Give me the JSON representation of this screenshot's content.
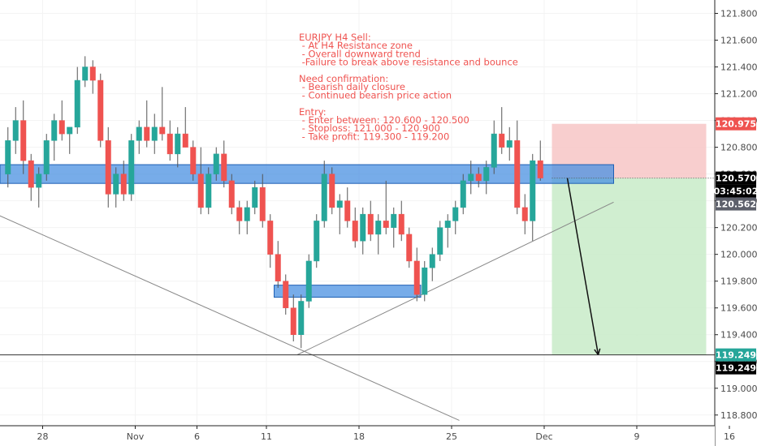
{
  "chart_data": {
    "type": "candlestick",
    "symbol": "EURJPY",
    "timeframe": "H4",
    "y_axis": {
      "ticks": [
        118.8,
        119.0,
        119.2,
        119.4,
        119.6,
        119.8,
        120.0,
        120.2,
        120.4,
        120.6,
        120.8,
        121.0,
        121.2,
        121.4,
        121.6,
        121.8
      ],
      "tick_labels": [
        "118.800",
        "119.000",
        "119.200",
        "119.400",
        "119.600",
        "119.800",
        "120.000",
        "120.200",
        "120.400",
        "120.600",
        "120.800",
        "121.000",
        "121.200",
        "121.400",
        "121.600",
        "121.800"
      ],
      "ylim": [
        118.72,
        121.9
      ]
    },
    "x_axis": {
      "tick_labels": [
        "28",
        "Nov",
        "6",
        "11",
        "18",
        "25",
        "Dec",
        "9",
        "16"
      ],
      "tick_bars": [
        5,
        17,
        25,
        34,
        46,
        58,
        70,
        82,
        94
      ]
    },
    "price_tags": {
      "stop_loss": {
        "label": "120.975",
        "value": 120.975,
        "color": "#ef5350"
      },
      "current": {
        "label": "120.570",
        "value": 120.57,
        "color": "#000000"
      },
      "countdown": {
        "label": "03:45:02",
        "color": "#000000"
      },
      "bid": {
        "label": "120.562",
        "value": 120.562,
        "color": "#5d606b"
      },
      "take_profit": {
        "label": "119.249",
        "value": 119.249,
        "color": "#26a69a"
      },
      "horizontal_line": {
        "label": "119.249",
        "value": 119.249,
        "color": "#000000"
      }
    },
    "annotation": [
      "EURJPY H4 Sell:",
      "    - At H4 Resistance zone",
      "    - Overall downward trend",
      "    -Failure to break above resistance and bounce",
      "",
      "Need confirmation:",
      "    - Bearish daily closure",
      "    - Continued bearish price action",
      "",
      "Entry:",
      "    - Enter between: 120.600 - 120.500",
      "    - Stoploss: 121.000 - 120.900",
      "    - Take profit: 119.300 - 119.200"
    ],
    "resistance_zone": {
      "x_from_bar": -1,
      "x_to_bar": 79,
      "y_low": 120.53,
      "y_high": 120.67,
      "color": "#4a90e2"
    },
    "support_zone": {
      "x_from_bar": 35,
      "x_to_bar": 54,
      "y_low": 119.68,
      "y_high": 119.77,
      "color": "#4a90e2"
    },
    "position": {
      "side": "short",
      "entry": 120.57,
      "stop": 120.975,
      "target": 119.249,
      "x_from_bar": 71,
      "x_to_bar": 91
    },
    "trend_lines": [
      {
        "from": [
          -1,
          120.3
        ],
        "to": [
          59,
          118.76
        ]
      },
      {
        "from": [
          38,
          119.25
        ],
        "to": [
          79,
          120.39
        ]
      }
    ],
    "arrow": {
      "from": [
        73,
        120.57
      ],
      "to": [
        77,
        119.25
      ]
    },
    "colors": {
      "up": "#26a69a",
      "down": "#ef5350",
      "wick": "#555555",
      "stop_zone": "#f7c5c5",
      "target_zone": "#c8ebc8"
    },
    "candles": [
      {
        "o": 120.6,
        "h": 120.95,
        "l": 120.5,
        "c": 120.85
      },
      {
        "o": 120.85,
        "h": 121.1,
        "l": 120.75,
        "c": 121.0
      },
      {
        "o": 121.0,
        "h": 121.15,
        "l": 120.6,
        "c": 120.7
      },
      {
        "o": 120.7,
        "h": 120.75,
        "l": 120.4,
        "c": 120.5
      },
      {
        "o": 120.5,
        "h": 120.65,
        "l": 120.35,
        "c": 120.6
      },
      {
        "o": 120.6,
        "h": 120.9,
        "l": 120.55,
        "c": 120.85
      },
      {
        "o": 120.85,
        "h": 121.05,
        "l": 120.7,
        "c": 121.0
      },
      {
        "o": 121.0,
        "h": 121.15,
        "l": 120.85,
        "c": 120.9
      },
      {
        "o": 120.9,
        "h": 120.95,
        "l": 120.75,
        "c": 120.95
      },
      {
        "o": 120.95,
        "h": 121.4,
        "l": 120.9,
        "c": 121.3
      },
      {
        "o": 121.3,
        "h": 121.48,
        "l": 121.25,
        "c": 121.4
      },
      {
        "o": 121.4,
        "h": 121.45,
        "l": 121.2,
        "c": 121.3
      },
      {
        "o": 121.3,
        "h": 121.35,
        "l": 120.8,
        "c": 120.85
      },
      {
        "o": 120.85,
        "h": 120.95,
        "l": 120.35,
        "c": 120.45
      },
      {
        "o": 120.45,
        "h": 120.65,
        "l": 120.35,
        "c": 120.6
      },
      {
        "o": 120.6,
        "h": 120.7,
        "l": 120.4,
        "c": 120.45
      },
      {
        "o": 120.45,
        "h": 120.9,
        "l": 120.4,
        "c": 120.85
      },
      {
        "o": 120.85,
        "h": 121.0,
        "l": 120.75,
        "c": 120.95
      },
      {
        "o": 120.95,
        "h": 121.15,
        "l": 120.8,
        "c": 120.85
      },
      {
        "o": 120.85,
        "h": 121.05,
        "l": 120.75,
        "c": 120.95
      },
      {
        "o": 120.95,
        "h": 121.25,
        "l": 120.85,
        "c": 120.9
      },
      {
        "o": 120.9,
        "h": 121.0,
        "l": 120.7,
        "c": 120.75
      },
      {
        "o": 120.75,
        "h": 120.95,
        "l": 120.65,
        "c": 120.9
      },
      {
        "o": 120.9,
        "h": 121.1,
        "l": 120.8,
        "c": 120.8
      },
      {
        "o": 120.8,
        "h": 120.85,
        "l": 120.55,
        "c": 120.6
      },
      {
        "o": 120.6,
        "h": 120.8,
        "l": 120.3,
        "c": 120.35
      },
      {
        "o": 120.35,
        "h": 120.65,
        "l": 120.3,
        "c": 120.6
      },
      {
        "o": 120.6,
        "h": 120.8,
        "l": 120.55,
        "c": 120.75
      },
      {
        "o": 120.75,
        "h": 120.85,
        "l": 120.5,
        "c": 120.55
      },
      {
        "o": 120.55,
        "h": 120.6,
        "l": 120.3,
        "c": 120.35
      },
      {
        "o": 120.35,
        "h": 120.4,
        "l": 120.15,
        "c": 120.25
      },
      {
        "o": 120.25,
        "h": 120.4,
        "l": 120.15,
        "c": 120.35
      },
      {
        "o": 120.35,
        "h": 120.55,
        "l": 120.3,
        "c": 120.5
      },
      {
        "o": 120.5,
        "h": 120.6,
        "l": 120.2,
        "c": 120.25
      },
      {
        "o": 120.25,
        "h": 120.3,
        "l": 119.9,
        "c": 120.0
      },
      {
        "o": 120.0,
        "h": 120.1,
        "l": 119.75,
        "c": 119.8
      },
      {
        "o": 119.8,
        "h": 119.85,
        "l": 119.55,
        "c": 119.6
      },
      {
        "o": 119.6,
        "h": 119.7,
        "l": 119.35,
        "c": 119.4
      },
      {
        "o": 119.4,
        "h": 119.7,
        "l": 119.3,
        "c": 119.65
      },
      {
        "o": 119.65,
        "h": 120.0,
        "l": 119.6,
        "c": 119.95
      },
      {
        "o": 119.95,
        "h": 120.3,
        "l": 119.9,
        "c": 120.25
      },
      {
        "o": 120.25,
        "h": 120.7,
        "l": 120.2,
        "c": 120.6
      },
      {
        "o": 120.6,
        "h": 120.65,
        "l": 120.3,
        "c": 120.35
      },
      {
        "o": 120.35,
        "h": 120.45,
        "l": 120.15,
        "c": 120.4
      },
      {
        "o": 120.4,
        "h": 120.5,
        "l": 120.2,
        "c": 120.25
      },
      {
        "o": 120.25,
        "h": 120.35,
        "l": 120.05,
        "c": 120.1
      },
      {
        "o": 120.1,
        "h": 120.35,
        "l": 120.0,
        "c": 120.3
      },
      {
        "o": 120.3,
        "h": 120.4,
        "l": 120.1,
        "c": 120.15
      },
      {
        "o": 120.15,
        "h": 120.3,
        "l": 120.0,
        "c": 120.25
      },
      {
        "o": 120.25,
        "h": 120.55,
        "l": 120.15,
        "c": 120.2
      },
      {
        "o": 120.2,
        "h": 120.35,
        "l": 120.05,
        "c": 120.3
      },
      {
        "o": 120.3,
        "h": 120.4,
        "l": 120.1,
        "c": 120.15
      },
      {
        "o": 120.15,
        "h": 120.2,
        "l": 119.9,
        "c": 119.95
      },
      {
        "o": 119.95,
        "h": 120.05,
        "l": 119.65,
        "c": 119.7
      },
      {
        "o": 119.7,
        "h": 119.95,
        "l": 119.65,
        "c": 119.9
      },
      {
        "o": 119.9,
        "h": 120.05,
        "l": 119.8,
        "c": 120.0
      },
      {
        "o": 120.0,
        "h": 120.25,
        "l": 119.95,
        "c": 120.2
      },
      {
        "o": 120.2,
        "h": 120.3,
        "l": 120.05,
        "c": 120.25
      },
      {
        "o": 120.25,
        "h": 120.4,
        "l": 120.15,
        "c": 120.35
      },
      {
        "o": 120.35,
        "h": 120.6,
        "l": 120.3,
        "c": 120.55
      },
      {
        "o": 120.55,
        "h": 120.7,
        "l": 120.45,
        "c": 120.6
      },
      {
        "o": 120.6,
        "h": 120.65,
        "l": 120.5,
        "c": 120.55
      },
      {
        "o": 120.55,
        "h": 120.7,
        "l": 120.45,
        "c": 120.65
      },
      {
        "o": 120.65,
        "h": 121.0,
        "l": 120.6,
        "c": 120.9
      },
      {
        "o": 120.9,
        "h": 121.1,
        "l": 120.75,
        "c": 120.8
      },
      {
        "o": 120.8,
        "h": 120.95,
        "l": 120.7,
        "c": 120.85
      },
      {
        "o": 120.85,
        "h": 121.0,
        "l": 120.3,
        "c": 120.35
      },
      {
        "o": 120.35,
        "h": 120.45,
        "l": 120.15,
        "c": 120.25
      },
      {
        "o": 120.25,
        "h": 120.75,
        "l": 120.1,
        "c": 120.7
      },
      {
        "o": 120.7,
        "h": 120.85,
        "l": 120.55,
        "c": 120.57
      }
    ]
  }
}
